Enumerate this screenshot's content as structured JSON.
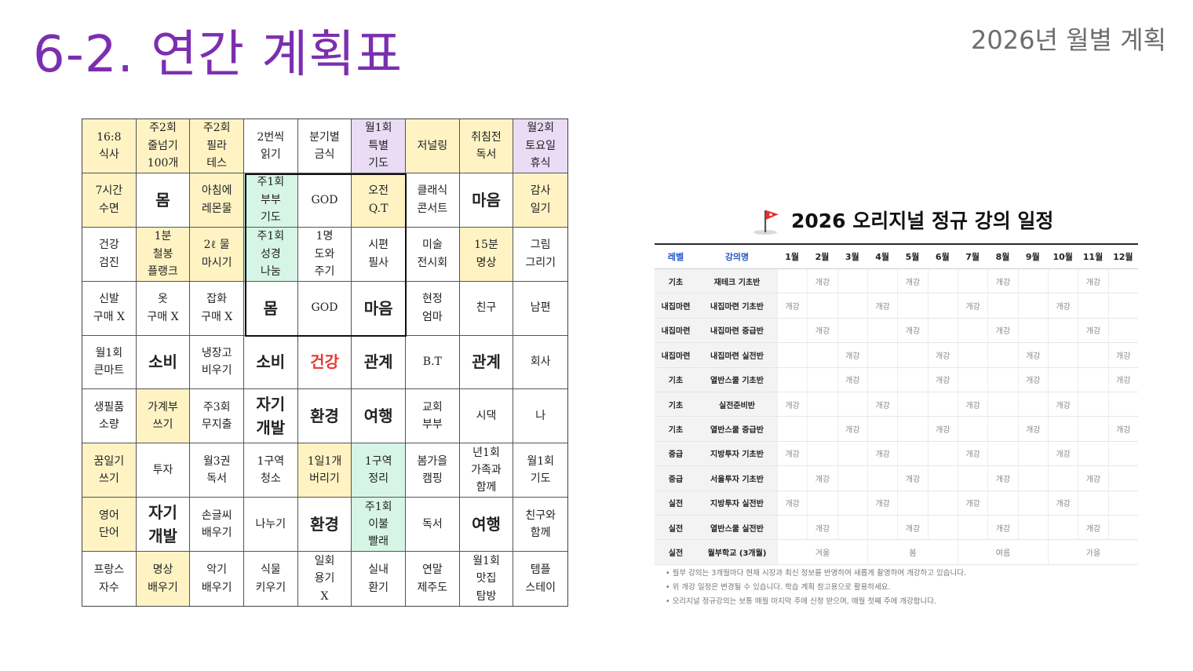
{
  "header": {
    "title": "6-2. 연간 계획표",
    "subtitle": "2026년 월별 계획"
  },
  "mandalart": {
    "cells": [
      [
        "16:8\n식사",
        "주2회\n줄넘기\n100개",
        "주2회\n필라\n테스",
        "2번씩\n읽기",
        "분기별\n금식",
        "월1회\n특별\n기도",
        "저널링",
        "취침전\n독서",
        "월2회\n토요일\n휴식"
      ],
      [
        "7시간\n수면",
        "몸",
        "아침에\n레몬물",
        "주1회\n부부\n기도",
        "GOD",
        "오전\nQ.T",
        "클래식\n콘서트",
        "마음",
        "감사\n일기"
      ],
      [
        "건강\n검진",
        "1분\n철봉\n플랭크",
        "2ℓ 물\n마시기",
        "주1회\n성경\n나눔",
        "1명\n도와\n주기",
        "시편\n필사",
        "미술\n전시회",
        "15분\n명상",
        "그림\n그리기"
      ],
      [
        "신발\n구매 X",
        "옷\n구매 X",
        "잡화\n구매 X",
        "몸",
        "GOD",
        "마음",
        "현정\n엄마",
        "친구",
        "남편"
      ],
      [
        "월1회\n큰마트",
        "소비",
        "냉장고\n비우기",
        "소비",
        "건강",
        "관계",
        "B.T",
        "관계",
        "회사"
      ],
      [
        "생필품\n소량",
        "가계부\n쓰기",
        "주3회\n무지출",
        "자기\n개발",
        "환경",
        "여행",
        "교회\n부부",
        "시댁",
        "나"
      ],
      [
        "꿈일기\n쓰기",
        "투자",
        "월3권\n독서",
        "1구역\n청소",
        "1일1개\n버리기",
        "1구역\n정리",
        "봄가을\n캠핑",
        "년1회\n가족과\n함께",
        "월1회\n기도"
      ],
      [
        "영어\n단어",
        "자기\n개발",
        "손글씨\n배우기",
        "나누기",
        "환경",
        "주1회\n이불\n빨래",
        "독서",
        "여행",
        "친구와\n함께"
      ],
      [
        "프랑스\n자수",
        "명상\n배우기",
        "악기\n배우기",
        "식물\n키우기",
        "일회\n용기\nX",
        "실내\n환기",
        "연말\n제주도",
        "월1회\n맛집\n탐방",
        "템플\n스테이"
      ]
    ],
    "fills": [
      [
        "y",
        "y",
        "y",
        "",
        "",
        "p",
        "y",
        "y",
        "p"
      ],
      [
        "y",
        "",
        "y",
        "g",
        "",
        "y",
        "",
        "",
        "y"
      ],
      [
        "",
        "y",
        "y",
        "g",
        "",
        "",
        "",
        "y",
        ""
      ],
      [
        "",
        "",
        "",
        "",
        "",
        "",
        "",
        "",
        ""
      ],
      [
        "",
        "",
        "",
        "",
        "",
        "",
        "",
        "",
        ""
      ],
      [
        "",
        "y",
        "",
        "",
        "",
        "",
        "",
        "",
        ""
      ],
      [
        "y",
        "",
        "",
        "",
        "y",
        "g",
        "",
        "",
        ""
      ],
      [
        "y",
        "",
        "",
        "",
        "",
        "g",
        "",
        "",
        ""
      ],
      [
        "",
        "y",
        "",
        "",
        "",
        "",
        "",
        "",
        ""
      ]
    ],
    "emphasis": [
      [
        0,
        0,
        0,
        0,
        0,
        0,
        0,
        0,
        0
      ],
      [
        0,
        1,
        0,
        0,
        0,
        0,
        0,
        1,
        0
      ],
      [
        0,
        0,
        0,
        0,
        0,
        0,
        0,
        0,
        0
      ],
      [
        0,
        0,
        0,
        1,
        0,
        1,
        0,
        0,
        0
      ],
      [
        0,
        1,
        0,
        1,
        2,
        1,
        0,
        1,
        0
      ],
      [
        0,
        0,
        0,
        1,
        1,
        1,
        0,
        0,
        0
      ],
      [
        0,
        0,
        0,
        0,
        0,
        0,
        0,
        0,
        0
      ],
      [
        0,
        1,
        0,
        0,
        1,
        0,
        0,
        1,
        0
      ],
      [
        0,
        0,
        0,
        0,
        0,
        0,
        0,
        0,
        0
      ]
    ],
    "highlight_color": "#e53935",
    "fill_colors": {
      "y": "#fff3c4",
      "g": "#d6f5e6",
      "p": "#eadcf4"
    }
  },
  "schedule": {
    "flag_icon": "red-flag-icon",
    "title": "2026 오리지널 정규 강의 일정",
    "headers": [
      "레벨",
      "강의명",
      "1월",
      "2월",
      "3월",
      "4월",
      "5월",
      "6월",
      "7월",
      "8월",
      "9월",
      "10월",
      "11월",
      "12월"
    ],
    "rows": [
      {
        "level": "기초",
        "name": "재테크 기초반",
        "months": [
          "",
          "개강",
          "",
          "",
          "개강",
          "",
          "",
          "개강",
          "",
          "",
          "개강",
          ""
        ]
      },
      {
        "level": "내집마련",
        "name": "내집마련 기초반",
        "months": [
          "개강",
          "",
          "",
          "개강",
          "",
          "",
          "개강",
          "",
          "",
          "개강",
          "",
          ""
        ]
      },
      {
        "level": "내집마련",
        "name": "내집마련 중급반",
        "months": [
          "",
          "개강",
          "",
          "",
          "개강",
          "",
          "",
          "개강",
          "",
          "",
          "개강",
          ""
        ]
      },
      {
        "level": "내집마련",
        "name": "내집마련 실전반",
        "months": [
          "",
          "",
          "개강",
          "",
          "",
          "개강",
          "",
          "",
          "개강",
          "",
          "",
          "개강"
        ]
      },
      {
        "level": "기초",
        "name": "열반스쿨 기초반",
        "months": [
          "",
          "",
          "개강",
          "",
          "",
          "개강",
          "",
          "",
          "개강",
          "",
          "",
          "개강"
        ]
      },
      {
        "level": "기초",
        "name": "실전준비반",
        "months": [
          "개강",
          "",
          "",
          "개강",
          "",
          "",
          "개강",
          "",
          "",
          "개강",
          "",
          ""
        ]
      },
      {
        "level": "기초",
        "name": "열반스쿨 중급반",
        "months": [
          "",
          "",
          "개강",
          "",
          "",
          "개강",
          "",
          "",
          "개강",
          "",
          "",
          "개강"
        ]
      },
      {
        "level": "중급",
        "name": "지방투자 기초반",
        "months": [
          "개강",
          "",
          "",
          "개강",
          "",
          "",
          "개강",
          "",
          "",
          "개강",
          "",
          ""
        ]
      },
      {
        "level": "중급",
        "name": "서울투자 기초반",
        "months": [
          "",
          "개강",
          "",
          "",
          "개강",
          "",
          "",
          "개강",
          "",
          "",
          "개강",
          ""
        ]
      },
      {
        "level": "실전",
        "name": "지방투자 실전반",
        "months": [
          "개강",
          "",
          "",
          "개강",
          "",
          "",
          "개강",
          "",
          "",
          "개강",
          "",
          ""
        ]
      },
      {
        "level": "실전",
        "name": "열반스쿨 실전반",
        "months": [
          "",
          "개강",
          "",
          "",
          "개강",
          "",
          "",
          "개강",
          "",
          "",
          "개강",
          ""
        ]
      }
    ],
    "seasonal_row": {
      "level": "실전",
      "name": "월부학교 (3개월)",
      "seasons": [
        "겨울",
        "봄",
        "여름",
        "가을"
      ]
    },
    "notes": [
      "월부 강의는 3개월마다 현재 시장과 최신 정보를 반영하여 새롭게 촬영하여 개강하고 있습니다.",
      "위 개강 일정은 변경될 수 있습니다. 학습 계획 참고용으로 활용하세요.",
      "오리지널 정규강의는 보통 매월 마지막 주에 신청 받으며, 매월 첫째 주에 개강합니다."
    ]
  }
}
